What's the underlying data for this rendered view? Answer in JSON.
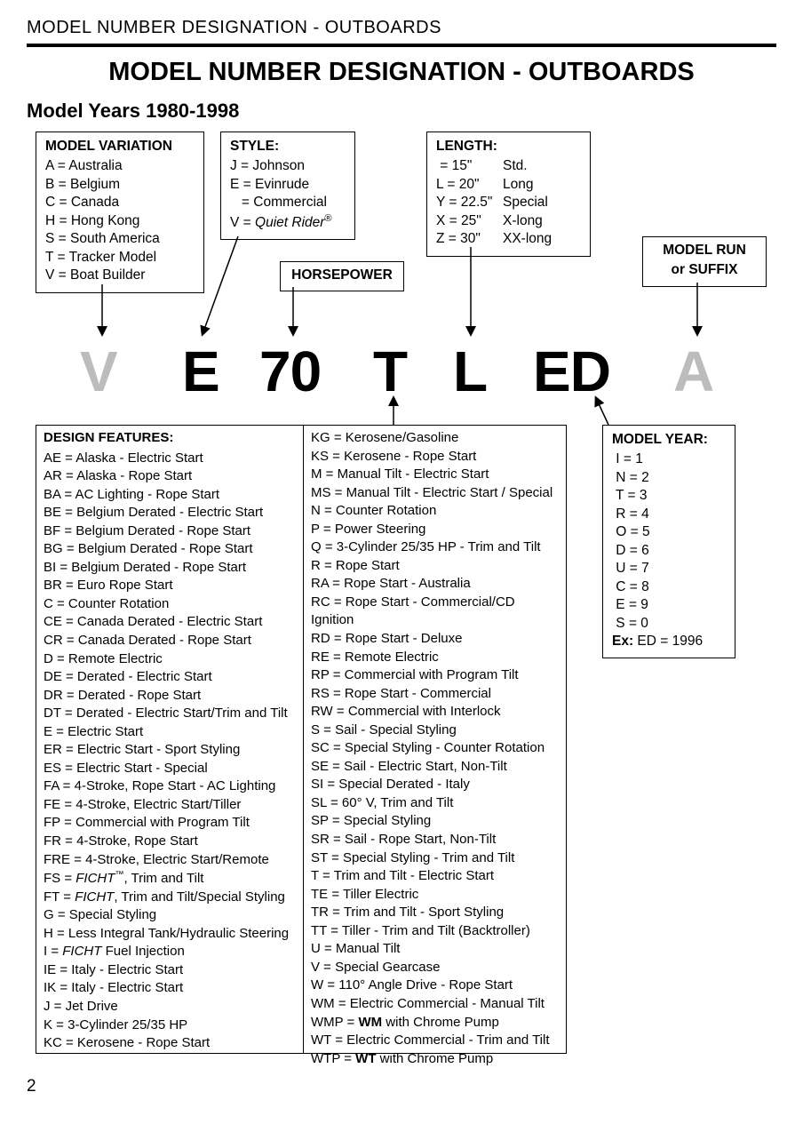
{
  "header": "MODEL NUMBER DESIGNATION - OUTBOARDS",
  "title": "MODEL NUMBER DESIGNATION - OUTBOARDS",
  "subtitle": "Model Years 1980-1998",
  "pageNumber": "2",
  "model": {
    "c1": "V",
    "c2": "E",
    "c3": "70",
    "c4": "T",
    "c5": "L",
    "c6": "ED",
    "c7": "A"
  },
  "boxes": {
    "variation": {
      "title": "MODEL VARIATION",
      "items": [
        "A = Australia",
        "B = Belgium",
        "C = Canada",
        "H = Hong Kong",
        "S = South America",
        "T = Tracker Model",
        "V = Boat Builder"
      ]
    },
    "style": {
      "title": "STYLE:"
    },
    "hp": {
      "title": "HORSEPOWER"
    },
    "length": {
      "title": "LENGTH:",
      "rows": [
        {
          "a": " = 15\"",
          "b": "Std."
        },
        {
          "a": "L = 20\"",
          "b": "Long"
        },
        {
          "a": "Y = 22.5\"",
          "b": "Special"
        },
        {
          "a": "X = 25\"",
          "b": "X-long"
        },
        {
          "a": "Z = 30\"",
          "b": "XX-long"
        }
      ]
    },
    "suffix": {
      "title1": "MODEL RUN",
      "title2": "or SUFFIX"
    },
    "year": {
      "title": "MODEL YEAR:",
      "items": [
        " I = 1",
        " N = 2",
        " T = 3",
        " R = 4",
        " O = 5",
        " D = 6",
        " U = 7",
        " C = 8",
        " E = 9",
        " S = 0"
      ],
      "exLabel": "Ex:",
      "exVal": " ED = 1996"
    }
  },
  "design": {
    "title": "DESIGN FEATURES:",
    "col1": [
      "AE = Alaska - Electric Start",
      "AR = Alaska - Rope Start",
      "BA = AC Lighting - Rope Start",
      "BE = Belgium Derated - Electric Start",
      "BF = Belgium Derated - Rope Start",
      "BG = Belgium Derated - Rope Start",
      "BI = Belgium Derated - Rope Start",
      "BR = Euro Rope Start",
      "C = Counter Rotation",
      "CE = Canada Derated - Electric Start",
      "CR = Canada Derated - Rope Start",
      "D = Remote Electric",
      "DE = Derated - Electric Start",
      "DR = Derated - Rope Start",
      "DT = Derated - Electric Start/Trim and Tilt",
      "E = Electric Start",
      "ER = Electric Start - Sport Styling",
      "ES = Electric Start - Special",
      "FA = 4-Stroke, Rope Start - AC Lighting",
      "FE = 4-Stroke, Electric Start/Tiller",
      "FP = Commercial with Program Tilt",
      "FR = 4-Stroke, Rope Start",
      "FRE = 4-Stroke, Electric Start/Remote"
    ],
    "col1tail": [
      "G = Special Styling",
      "H = Less Integral Tank/Hydraulic Steering"
    ],
    "col1tail2": [
      "IE = Italy - Electric Start",
      "IK = Italy - Electric Start",
      "J = Jet Drive",
      "K = 3-Cylinder 25/35 HP",
      "KC = Kerosene - Rope Start"
    ],
    "col2": [
      "KG = Kerosene/Gasoline",
      "KS = Kerosene - Rope Start",
      "M = Manual Tilt - Electric Start",
      "MS = Manual Tilt - Electric Start / Special",
      "N = Counter Rotation",
      "P = Power Steering",
      "Q = 3-Cylinder 25/35 HP - Trim and Tilt",
      "R = Rope Start",
      "RA = Rope Start - Australia",
      "RC = Rope Start - Commercial/CD Ignition",
      "RD = Rope Start - Deluxe",
      "RE = Remote Electric",
      "RP = Commercial with Program Tilt",
      "RS = Rope Start - Commercial",
      "RW = Commercial with Interlock",
      "S = Sail - Special Styling",
      "SC = Special Styling - Counter Rotation",
      "SE = Sail - Electric Start, Non-Tilt",
      "SI = Special Derated - Italy",
      "SL = 60° V, Trim and Tilt",
      "SP = Special Styling",
      "SR = Sail - Rope Start, Non-Tilt",
      "ST = Special Styling - Trim and Tilt",
      "T = Trim and Tilt - Electric Start",
      "TE = Tiller Electric",
      "TR = Trim and Tilt - Sport Styling",
      "TT = Tiller - Trim and Tilt (Backtroller)",
      "U = Manual Tilt",
      "V = Special Gearcase",
      "W = 110° Angle Drive - Rope Start",
      "WM = Electric Commercial - Manual Tilt"
    ],
    "wmp1": "WMP = ",
    "wmp2": "WM",
    "wmp3": " with Chrome Pump",
    "wt": "WT = Electric Commercial - Trim and Tilt",
    "wtp1": "WTP = ",
    "wtp2": "WT",
    "wtp3": " with Chrome Pump",
    "fs1": "FS = ",
    "fs2": "FICHT",
    "fs3": ", Trim and Tilt",
    "ft1": "FT = ",
    "ft2": "FICHT",
    "ft3": ", Trim and Tilt/Special Styling",
    "i1": "I = ",
    "i2": "FICHT",
    "i3": " Fuel Injection",
    "style_j": "J = Johnson",
    "style_e": "E = Evinrude",
    "style_c": "   = Commercial",
    "style_v1": "V = ",
    "style_v2": "Quiet Rider"
  }
}
